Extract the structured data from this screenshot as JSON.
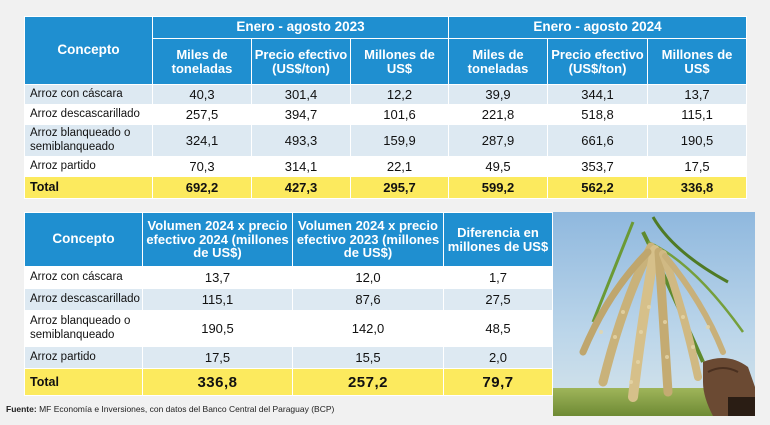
{
  "top_table": {
    "concepto": "Concepto",
    "group_2023": "Enero - agosto 2023",
    "group_2024": "Enero - agosto 2024",
    "col_tons": "Miles de toneladas",
    "col_price": "Precio efectivo (US$/ton)",
    "col_millions": "Millones de US$",
    "rows": [
      {
        "label": "Arroz con cáscara",
        "v": [
          "40,3",
          "301,4",
          "12,2",
          "39,9",
          "344,1",
          "13,7"
        ]
      },
      {
        "label": "Arroz descascarillado",
        "v": [
          "257,5",
          "394,7",
          "101,6",
          "221,8",
          "518,8",
          "115,1"
        ]
      },
      {
        "label": "Arroz blanqueado o semiblanqueado",
        "v": [
          "324,1",
          "493,3",
          "159,9",
          "287,9",
          "661,6",
          "190,5"
        ]
      },
      {
        "label": "Arroz partido",
        "v": [
          "70,3",
          "314,1",
          "22,1",
          "49,5",
          "353,7",
          "17,5"
        ]
      },
      {
        "label": "Total",
        "v": [
          "692,2",
          "427,3",
          "295,7",
          "599,2",
          "562,2",
          "336,8"
        ]
      }
    ]
  },
  "bottom_table": {
    "concepto": "Concepto",
    "col_1": "Volumen 2024 x precio efectivo 2024 (millones de US$)",
    "col_2": "Volumen 2024 x precio efectivo 2023 (millones de US$)",
    "col_3": "Diferencia en millones de US$",
    "rows": [
      {
        "label": "Arroz con cáscara",
        "v": [
          "13,7",
          "12,0",
          "1,7"
        ]
      },
      {
        "label": "Arroz descascarillado",
        "v": [
          "115,1",
          "87,6",
          "27,5"
        ]
      },
      {
        "label": "Arroz blanqueado o semiblanqueado",
        "v": [
          "190,5",
          "142,0",
          "48,5"
        ]
      },
      {
        "label": "Arroz partido",
        "v": [
          "17,5",
          "15,5",
          "2,0"
        ]
      },
      {
        "label": "Total",
        "v": [
          "336,8",
          "257,2",
          "79,7"
        ]
      }
    ]
  },
  "footer": {
    "bold": "Fuente:",
    "text": " MF Economía e Inversiones, con datos del Banco Central del Paraguay (BCP)"
  },
  "colors": {
    "header_blue": "#1f8fd0",
    "row_light_blue": "#dde9f2",
    "total_yellow": "#fcea5e"
  }
}
